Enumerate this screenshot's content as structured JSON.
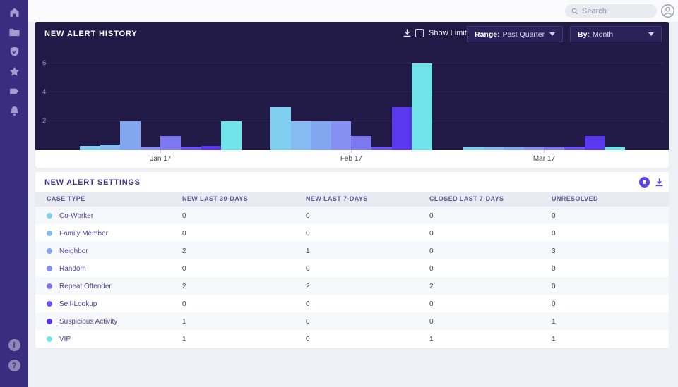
{
  "topbar": {
    "search_placeholder": "Search"
  },
  "sidebar": {
    "items": [
      "home-icon",
      "folder-icon",
      "shield-check-icon",
      "star-icon",
      "tag-icon",
      "bell-icon"
    ],
    "footer": [
      "info-icon",
      "help-icon"
    ],
    "footer_glyphs": {
      "info": "i",
      "help": "?"
    }
  },
  "alert_history": {
    "title": "NEW ALERT HISTORY",
    "show_limits_label": "Show Limits",
    "range_label": "Range:",
    "range_value": "Past Quarter",
    "by_label": "By:",
    "by_value": "Month"
  },
  "alert_settings": {
    "title": "NEW ALERT SETTINGS",
    "columns": [
      "CASE TYPE",
      "NEW LAST 30-DAYS",
      "NEW LAST 7-DAYS",
      "CLOSED LAST 7-DAYS",
      "UNRESOLVED"
    ],
    "rows": [
      {
        "case_type": "Co-Worker",
        "color": "#7fd0f0",
        "new_last_30_days": "0",
        "new_last_7_days": "0",
        "closed_last_7_days": "0",
        "unresolved": "0"
      },
      {
        "case_type": "Family Member",
        "color": "#85bbf0",
        "new_last_30_days": "0",
        "new_last_7_days": "0",
        "closed_last_7_days": "0",
        "unresolved": "0"
      },
      {
        "case_type": "Neighbor",
        "color": "#82a6f0",
        "new_last_30_days": "2",
        "new_last_7_days": "1",
        "closed_last_7_days": "0",
        "unresolved": "3"
      },
      {
        "case_type": "Random",
        "color": "#8590f0",
        "new_last_30_days": "0",
        "new_last_7_days": "0",
        "closed_last_7_days": "0",
        "unresolved": "0"
      },
      {
        "case_type": "Repeat Offender",
        "color": "#7e78f0",
        "new_last_30_days": "2",
        "new_last_7_days": "2",
        "closed_last_7_days": "2",
        "unresolved": "0"
      },
      {
        "case_type": "Self-Lookup",
        "color": "#6c55f0",
        "new_last_30_days": "0",
        "new_last_7_days": "0",
        "closed_last_7_days": "0",
        "unresolved": "0"
      },
      {
        "case_type": "Suspicious Activity",
        "color": "#5a38f0",
        "new_last_30_days": "1",
        "new_last_7_days": "0",
        "closed_last_7_days": "0",
        "unresolved": "1"
      },
      {
        "case_type": "VIP",
        "color": "#70e4ea",
        "new_last_30_days": "1",
        "new_last_7_days": "0",
        "closed_last_7_days": "1",
        "unresolved": "1"
      }
    ]
  },
  "chart_data": {
    "type": "bar",
    "title": "NEW ALERT HISTORY",
    "categories": [
      "Jan 17",
      "Feb 17",
      "Mar 17"
    ],
    "series": [
      {
        "name": "Co-Worker",
        "color": "#7fd0f0",
        "values": [
          0.3,
          3,
          0.25
        ]
      },
      {
        "name": "Family Member",
        "color": "#85bbf0",
        "values": [
          0.4,
          2,
          0.25
        ]
      },
      {
        "name": "Neighbor",
        "color": "#82a6f0",
        "values": [
          2,
          2,
          0.25
        ]
      },
      {
        "name": "Random",
        "color": "#8590f0",
        "values": [
          0.25,
          2,
          0.25
        ]
      },
      {
        "name": "Repeat Offender",
        "color": "#7e78f0",
        "values": [
          1,
          1,
          0.25
        ]
      },
      {
        "name": "Self-Lookup",
        "color": "#6c55f0",
        "values": [
          0.25,
          0.25,
          0.25
        ]
      },
      {
        "name": "Suspicious Activity",
        "color": "#5a38f0",
        "values": [
          0.3,
          3,
          1
        ]
      },
      {
        "name": "VIP",
        "color": "#70e4ea",
        "values": [
          2,
          6,
          0.25
        ]
      }
    ],
    "xlabel": "",
    "ylabel": "",
    "yticks": [
      2,
      4,
      6
    ],
    "ylim": [
      0,
      6.8
    ],
    "grid": true,
    "legend": false
  }
}
